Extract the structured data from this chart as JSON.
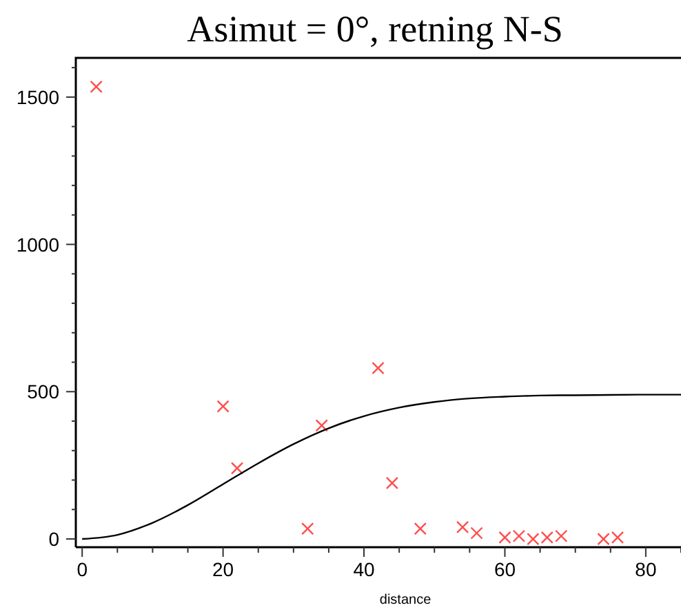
{
  "chart_data": {
    "type": "scatter",
    "title": "Asimut = 0°, retning N-S",
    "xlabel": "distance",
    "xlim": [
      -0.9,
      85
    ],
    "ylim": [
      -28,
      1633
    ],
    "xticks": [
      0,
      {
        "value": 5,
        "label": null
      },
      20,
      {
        "value": 10,
        "label": null
      },
      {
        "value": 15,
        "label": null
      },
      {
        "value": 25,
        "label": null
      },
      {
        "value": 30,
        "label": null
      },
      {
        "value": 35,
        "label": null
      },
      40,
      {
        "value": 45,
        "label": null
      },
      {
        "value": 50,
        "label": null
      },
      {
        "value": 55,
        "label": null
      },
      60,
      {
        "value": 65,
        "label": null
      },
      {
        "value": 70,
        "label": null
      },
      {
        "value": 75,
        "label": null
      },
      80,
      {
        "value": 85,
        "label": null
      }
    ],
    "yticks": [
      0,
      {
        "value": 100,
        "label": null
      },
      {
        "value": 200,
        "label": null
      },
      {
        "value": 300,
        "label": null
      },
      {
        "value": 400,
        "label": null
      },
      500,
      {
        "value": 600,
        "label": null
      },
      {
        "value": 700,
        "label": null
      },
      {
        "value": 800,
        "label": null
      },
      {
        "value": 900,
        "label": null
      },
      1000,
      {
        "value": 1100,
        "label": null
      },
      {
        "value": 1200,
        "label": null
      },
      {
        "value": 1300,
        "label": null
      },
      {
        "value": 1400,
        "label": null
      },
      1500,
      {
        "value": 1600,
        "label": null
      }
    ],
    "grid": false,
    "series": [
      {
        "color": "#ff4d4d",
        "marker": "cross",
        "x": [
          2,
          20,
          22,
          32,
          34,
          42,
          44,
          48,
          54,
          56,
          60,
          62,
          64,
          66,
          68,
          74,
          76
        ],
        "values": [
          1535,
          450,
          240,
          35,
          385,
          580,
          190,
          35,
          40,
          20,
          5,
          10,
          0,
          5,
          10,
          0,
          5
        ]
      },
      {
        "type": "line",
        "color": "#000000",
        "marker": "none",
        "x": [
          0,
          5,
          10,
          15,
          20,
          25,
          30,
          35,
          40,
          45,
          50,
          55,
          60,
          65,
          70,
          75,
          80,
          85
        ],
        "values": [
          0,
          14,
          55,
          115,
          186,
          257,
          322,
          376,
          417,
          446,
          465,
          477,
          483,
          487,
          488,
          489,
          490,
          490
        ]
      }
    ]
  }
}
